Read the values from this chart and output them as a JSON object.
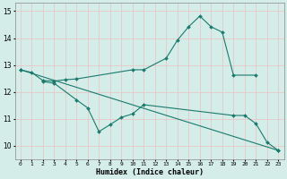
{
  "xlabel": "Humidex (Indice chaleur)",
  "bg_color": "#d4ede8",
  "grid_color": "#c0ddd8",
  "line_color": "#1a7a6e",
  "series1_x": [
    0,
    1,
    2,
    3,
    4,
    5,
    10,
    11,
    13,
    14,
    15,
    16,
    17,
    18,
    19,
    21
  ],
  "series1_y": [
    12.82,
    12.72,
    12.42,
    12.4,
    12.45,
    12.48,
    12.82,
    12.82,
    13.25,
    13.92,
    14.42,
    14.82,
    14.42,
    14.22,
    12.62,
    12.62
  ],
  "series2_x": [
    2,
    3,
    5,
    6,
    7,
    8,
    9,
    10,
    11,
    19,
    20,
    21,
    22,
    23
  ],
  "series2_y": [
    12.38,
    12.32,
    11.7,
    11.4,
    10.52,
    10.78,
    11.05,
    11.18,
    11.52,
    11.12,
    11.12,
    10.82,
    10.12,
    9.82
  ],
  "series3_x": [
    0,
    23
  ],
  "series3_y": [
    12.82,
    9.82
  ],
  "xlim": [
    -0.5,
    23.5
  ],
  "ylim": [
    9.5,
    15.3
  ],
  "yticks": [
    10,
    11,
    12,
    13,
    14,
    15
  ],
  "xticks": [
    0,
    1,
    2,
    3,
    4,
    5,
    6,
    7,
    8,
    9,
    10,
    11,
    12,
    13,
    14,
    15,
    16,
    17,
    18,
    19,
    20,
    21,
    22,
    23
  ]
}
